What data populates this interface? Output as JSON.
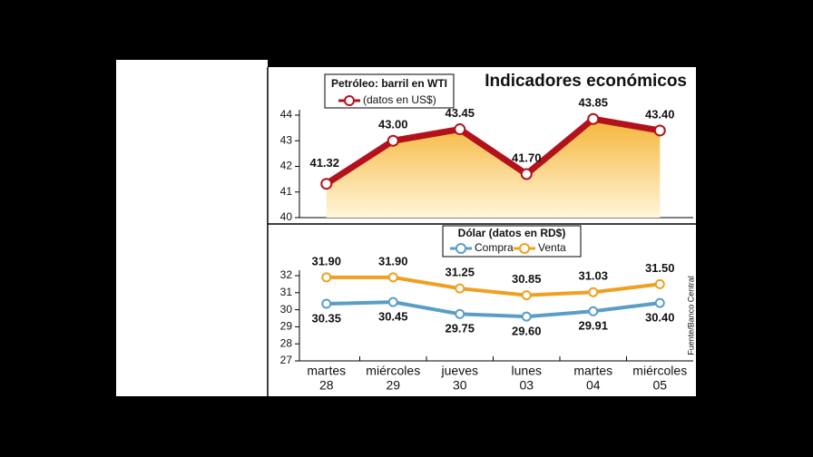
{
  "chart_data": [
    {
      "type": "area-line",
      "title": "Indicadores económicos",
      "legend_title": "Petróleo: barril en WTI",
      "series": [
        {
          "name": "(datos en US$)",
          "color": "#b3121c",
          "values": [
            41.32,
            43.0,
            43.45,
            41.7,
            43.85,
            43.4
          ],
          "value_labels": [
            "41.32",
            "43.00",
            "43.45",
            "41.70",
            "43.85",
            "43.40"
          ]
        }
      ],
      "ylim": [
        40,
        44
      ],
      "yticks": [
        40,
        41,
        42,
        43,
        44
      ]
    },
    {
      "type": "line",
      "legend_title": "Dólar (datos en RD$)",
      "source": "Fuente/Banco Central",
      "categories": [
        [
          "martes",
          "28"
        ],
        [
          "miércoles",
          "29"
        ],
        [
          "jueves",
          "30"
        ],
        [
          "lunes",
          "03"
        ],
        [
          "martes",
          "04"
        ],
        [
          "miércoles",
          "05"
        ]
      ],
      "series": [
        {
          "name": "Compra",
          "color": "#5a9ec4",
          "values": [
            30.35,
            30.45,
            29.75,
            29.6,
            29.91,
            30.4
          ],
          "value_labels": [
            "30.35",
            "30.45",
            "29.75",
            "29.60",
            "29.91",
            "30.40"
          ]
        },
        {
          "name": "Venta",
          "color": "#f0a020",
          "values": [
            31.9,
            31.9,
            31.25,
            30.85,
            31.03,
            31.5
          ],
          "value_labels": [
            "31.90",
            "31.90",
            "31.25",
            "30.85",
            "31.03",
            "31.50"
          ]
        }
      ],
      "ylim": [
        27,
        32
      ],
      "yticks": [
        27,
        28,
        29,
        30,
        31,
        32
      ]
    }
  ]
}
